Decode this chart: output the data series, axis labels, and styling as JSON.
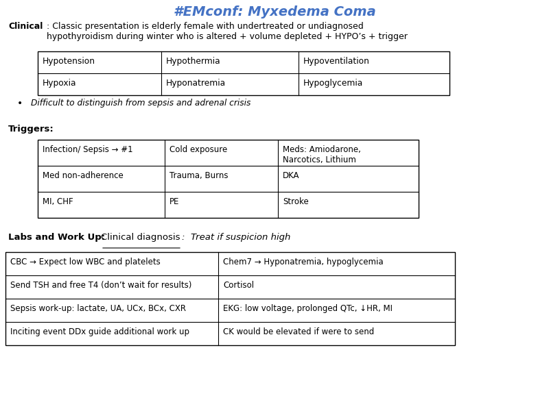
{
  "title": "#EMconf: Myxedema Coma",
  "title_color": "#4472C4",
  "background_color": "#ffffff",
  "clinical_bold": "Clinical",
  "clinical_text": ": Classic presentation is elderly female with undertreated or undiagnosed\nhypothyroidism during winter who is altered + volume depleted + HYPO’s + trigger",
  "hypo_table": [
    [
      "Hypotension",
      "Hypothermia",
      "Hypoventilation"
    ],
    [
      "Hypoxia",
      "Hyponatremia",
      "Hypoglycemia"
    ]
  ],
  "bullet_text": "Difficult to distinguish from sepsis and adrenal crisis",
  "triggers_bold": "Triggers:",
  "triggers_table": [
    [
      "Infection/ Sepsis → #1",
      "Cold exposure",
      "Meds: Amiodarone,\nNarcotics, Lithium"
    ],
    [
      "Med non-adherence",
      "Trauma, Burns",
      "DKA"
    ],
    [
      "MI, CHF",
      "PE",
      "Stroke"
    ]
  ],
  "labs_bold": "Labs and Work Up:",
  "labs_underline": "Clinical diagnosis",
  "labs_italic": ":  Treat if suspicion high",
  "labs_table": [
    [
      "CBC → Expect low WBC and platelets",
      "Chem7 → Hyponatremia, hypoglycemia"
    ],
    [
      "Send TSH and free T4 (don’t wait for results)",
      "Cortisol"
    ],
    [
      "Sepsis work-up: lactate, UA, UCx, BCx, CXR",
      "EKG: low voltage, prolonged QTc, ↓HR, MI"
    ],
    [
      "Inciting event DDx guide additional work up",
      "CK would be elevated if were to send"
    ]
  ]
}
